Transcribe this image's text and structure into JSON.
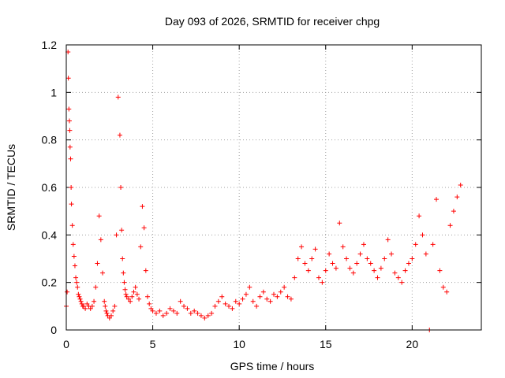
{
  "chart_data": {
    "type": "scatter",
    "title": "Day 093 of 2026, SRMTID for receiver chpg",
    "xlabel": "GPS time / hours",
    "ylabel": "SRMTID / TECUs",
    "xlim": [
      0,
      24
    ],
    "ylim": [
      0,
      1.2
    ],
    "xticks": [
      0,
      5,
      10,
      15,
      20
    ],
    "xtick_labels": [
      "0",
      "5",
      "10",
      "15",
      "20"
    ],
    "yticks": [
      0,
      0.2,
      0.4,
      0.6,
      0.8,
      1.0,
      1.2
    ],
    "ytick_labels": [
      "0",
      "0.2",
      "0.4",
      "0.6",
      "0.8",
      "1",
      "1.2"
    ],
    "grid": true,
    "marker": "+",
    "color": "#ff0000",
    "series": [
      {
        "name": "SRMTID",
        "x": [
          0.0,
          0.05,
          0.1,
          0.12,
          0.15,
          0.18,
          0.2,
          0.22,
          0.25,
          0.28,
          0.3,
          0.35,
          0.4,
          0.45,
          0.5,
          0.55,
          0.6,
          0.65,
          0.7,
          0.75,
          0.8,
          0.85,
          0.9,
          0.95,
          1.0,
          1.1,
          1.2,
          1.3,
          1.4,
          1.5,
          1.6,
          1.7,
          1.8,
          1.9,
          2.0,
          2.1,
          2.2,
          2.25,
          2.3,
          2.35,
          2.4,
          2.5,
          2.6,
          2.7,
          2.8,
          2.9,
          3.0,
          3.1,
          3.15,
          3.2,
          3.25,
          3.3,
          3.35,
          3.4,
          3.45,
          3.5,
          3.6,
          3.7,
          3.8,
          3.9,
          4.0,
          4.1,
          4.2,
          4.3,
          4.4,
          4.5,
          4.6,
          4.7,
          4.8,
          4.9,
          5.0,
          5.2,
          5.4,
          5.6,
          5.8,
          6.0,
          6.2,
          6.4,
          6.6,
          6.8,
          7.0,
          7.2,
          7.4,
          7.6,
          7.8,
          8.0,
          8.2,
          8.4,
          8.6,
          8.8,
          9.0,
          9.2,
          9.4,
          9.6,
          9.8,
          10.0,
          10.2,
          10.4,
          10.6,
          10.8,
          11.0,
          11.2,
          11.4,
          11.6,
          11.8,
          12.0,
          12.2,
          12.4,
          12.6,
          12.8,
          13.0,
          13.2,
          13.4,
          13.6,
          13.8,
          14.0,
          14.2,
          14.4,
          14.6,
          14.8,
          15.0,
          15.2,
          15.4,
          15.6,
          15.8,
          16.0,
          16.2,
          16.4,
          16.6,
          16.8,
          17.0,
          17.2,
          17.4,
          17.6,
          17.8,
          18.0,
          18.2,
          18.4,
          18.6,
          18.8,
          19.0,
          19.2,
          19.4,
          19.6,
          19.8,
          20.0,
          20.2,
          20.4,
          20.6,
          20.8,
          21.0,
          21.2,
          21.4,
          21.6,
          21.8,
          22.0,
          22.2,
          22.4,
          22.6,
          22.8
        ],
        "y": [
          0.1,
          0.16,
          1.17,
          1.06,
          0.93,
          0.88,
          0.84,
          0.77,
          0.72,
          0.6,
          0.53,
          0.44,
          0.36,
          0.31,
          0.27,
          0.22,
          0.2,
          0.18,
          0.15,
          0.14,
          0.13,
          0.12,
          0.11,
          0.1,
          0.1,
          0.09,
          0.11,
          0.1,
          0.09,
          0.1,
          0.12,
          0.18,
          0.28,
          0.48,
          0.38,
          0.24,
          0.12,
          0.1,
          0.08,
          0.07,
          0.06,
          0.05,
          0.06,
          0.08,
          0.1,
          0.4,
          0.98,
          0.82,
          0.6,
          0.42,
          0.3,
          0.24,
          0.2,
          0.17,
          0.15,
          0.14,
          0.13,
          0.12,
          0.14,
          0.16,
          0.18,
          0.15,
          0.13,
          0.35,
          0.52,
          0.43,
          0.25,
          0.14,
          0.11,
          0.09,
          0.08,
          0.07,
          0.08,
          0.06,
          0.07,
          0.09,
          0.08,
          0.07,
          0.12,
          0.1,
          0.09,
          0.07,
          0.08,
          0.07,
          0.06,
          0.05,
          0.06,
          0.07,
          0.1,
          0.12,
          0.14,
          0.11,
          0.1,
          0.09,
          0.12,
          0.11,
          0.13,
          0.15,
          0.18,
          0.12,
          0.1,
          0.14,
          0.16,
          0.13,
          0.12,
          0.15,
          0.14,
          0.16,
          0.18,
          0.14,
          0.13,
          0.22,
          0.3,
          0.35,
          0.28,
          0.25,
          0.3,
          0.34,
          0.22,
          0.2,
          0.25,
          0.32,
          0.28,
          0.26,
          0.45,
          0.35,
          0.3,
          0.26,
          0.24,
          0.28,
          0.32,
          0.36,
          0.3,
          0.28,
          0.25,
          0.22,
          0.26,
          0.3,
          0.38,
          0.32,
          0.24,
          0.22,
          0.2,
          0.25,
          0.28,
          0.3,
          0.36,
          0.48,
          0.4,
          0.32,
          0.0,
          0.36,
          0.55,
          0.25,
          0.18,
          0.16,
          0.44,
          0.5,
          0.56,
          0.61
        ]
      }
    ]
  }
}
